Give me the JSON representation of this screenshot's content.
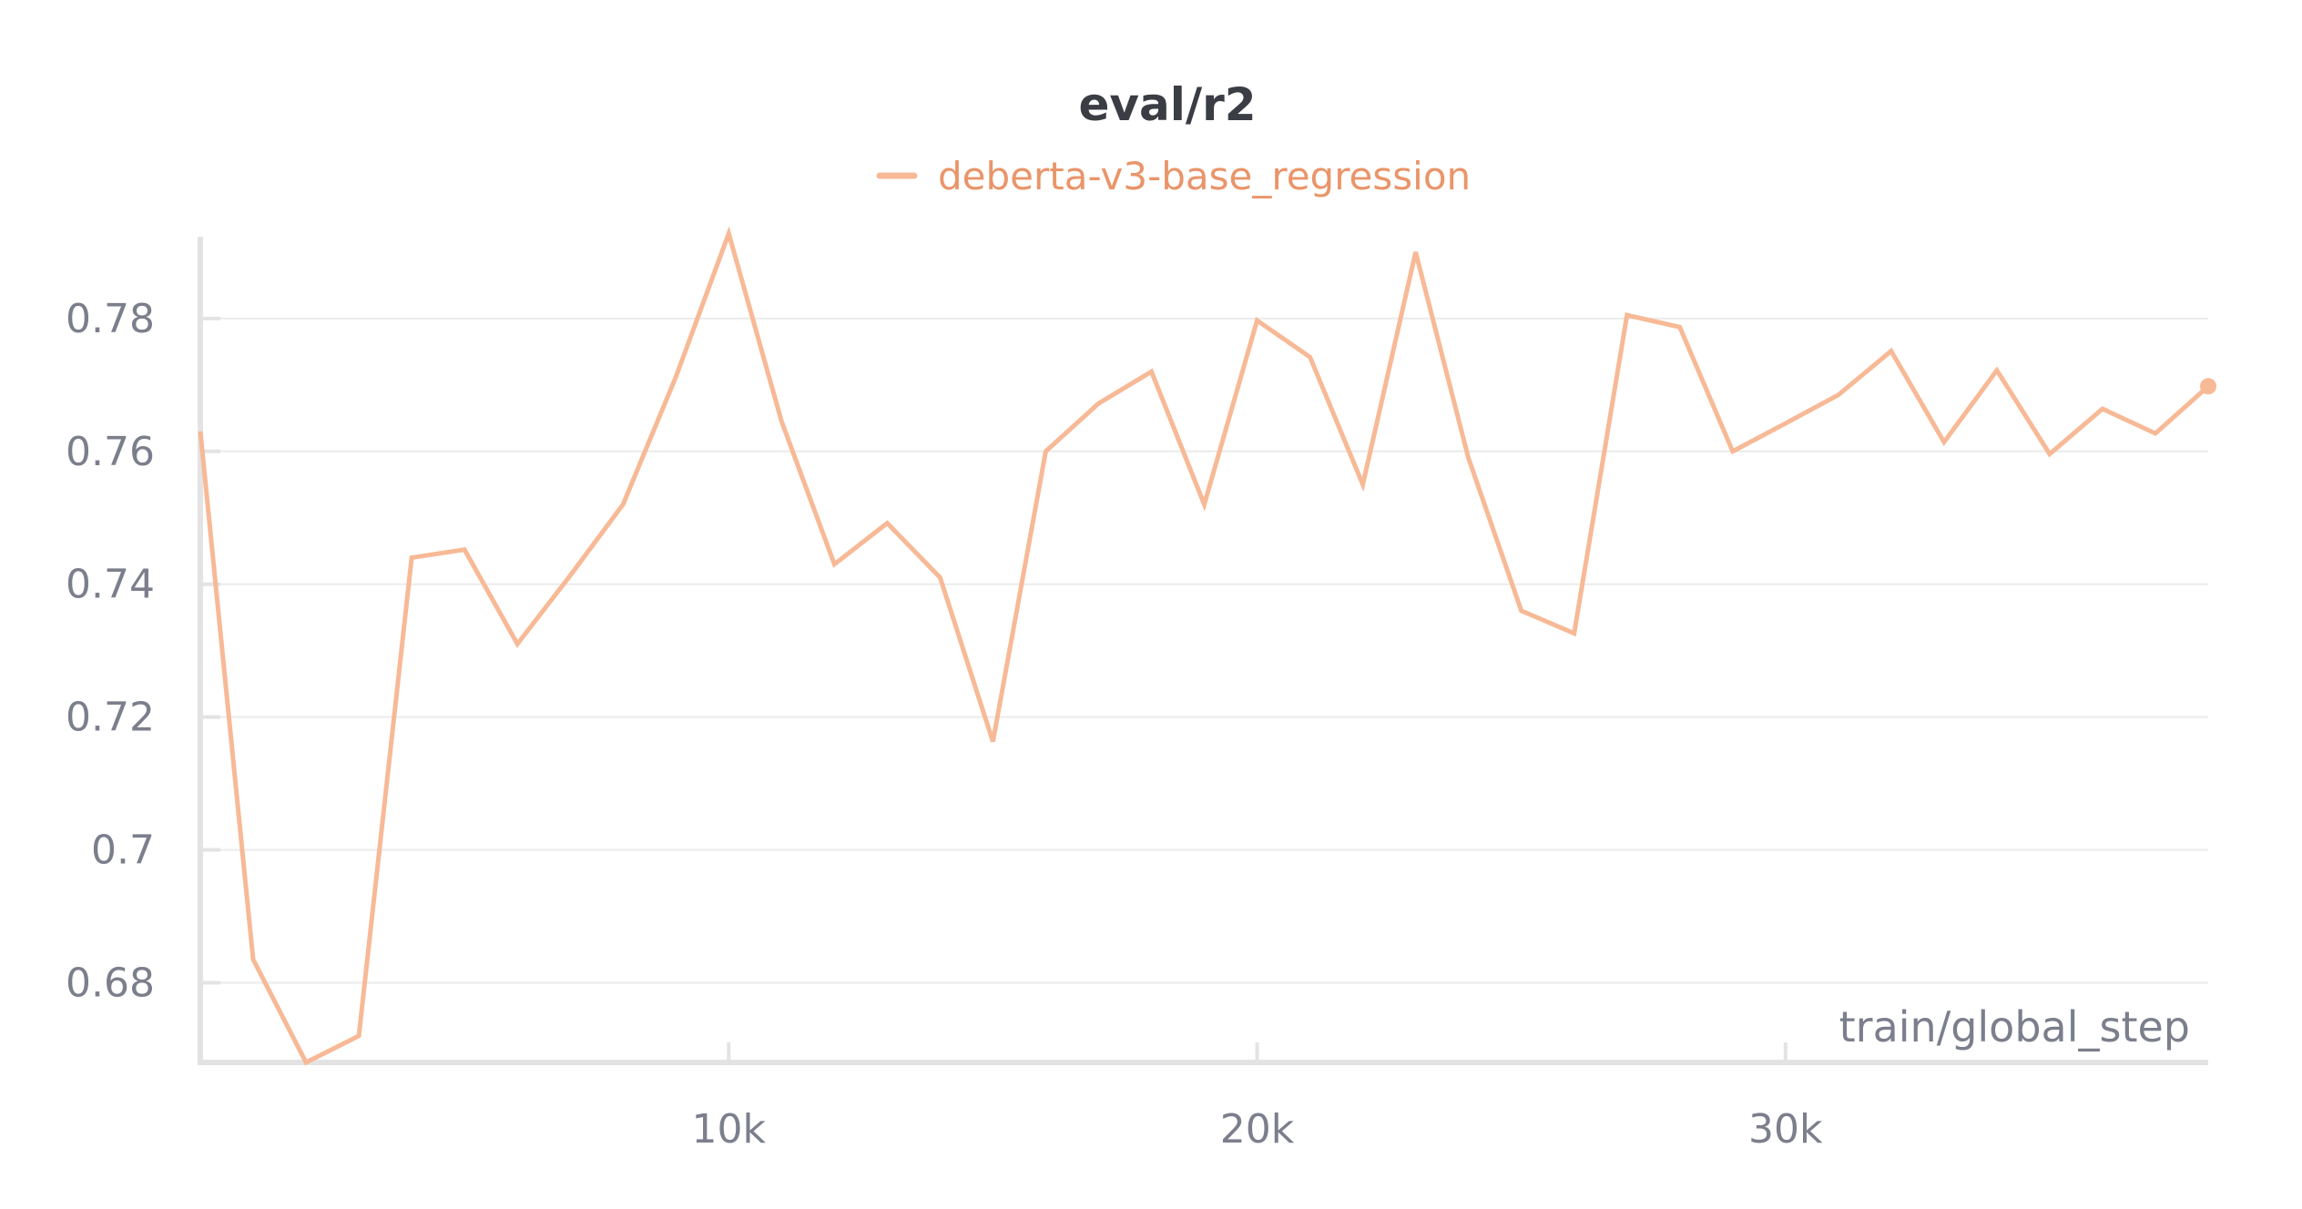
{
  "chart_data": {
    "type": "line",
    "title": "eval/r2",
    "xlabel": "train/global_step",
    "ylabel": "",
    "xlim": [
      0,
      38000
    ],
    "ylim": [
      0.668,
      0.793
    ],
    "x_ticks": [
      10000,
      20000,
      30000
    ],
    "x_tick_labels": [
      "10k",
      "20k",
      "30k"
    ],
    "y_ticks": [
      0.68,
      0.7,
      0.72,
      0.74,
      0.76,
      0.78
    ],
    "y_tick_labels": [
      "0.68",
      "0.7",
      "0.72",
      "0.74",
      "0.76",
      "0.78"
    ],
    "grid": true,
    "legend_position": "top-center",
    "series": [
      {
        "name": "deberta-v3-base_regression",
        "color": "#f7b996",
        "legend_color": "#e9956a",
        "x": [
          0,
          1000,
          2000,
          3000,
          4000,
          5000,
          6000,
          7000,
          8000,
          9000,
          10000,
          11000,
          12000,
          13000,
          14000,
          15000,
          16000,
          17000,
          18000,
          19000,
          20000,
          21000,
          22000,
          23000,
          24000,
          25000,
          26000,
          27000,
          28000,
          29000,
          30000,
          31000,
          32000,
          33000,
          34000,
          35000,
          36000,
          37000,
          38000
        ],
        "y": [
          0.763,
          0.6835,
          0.668,
          0.672,
          0.744,
          0.7452,
          0.731,
          0.7413,
          0.752,
          0.7712,
          0.7928,
          0.7645,
          0.743,
          0.7492,
          0.741,
          0.7163,
          0.76,
          0.7672,
          0.772,
          0.752,
          0.7797,
          0.7742,
          0.755,
          0.79,
          0.759,
          0.736,
          0.7326,
          0.7805,
          0.7787,
          0.76,
          0.7642,
          0.7685,
          0.7751,
          0.7614,
          0.7722,
          0.7596,
          0.7664,
          0.7627,
          0.7698
        ]
      }
    ]
  }
}
